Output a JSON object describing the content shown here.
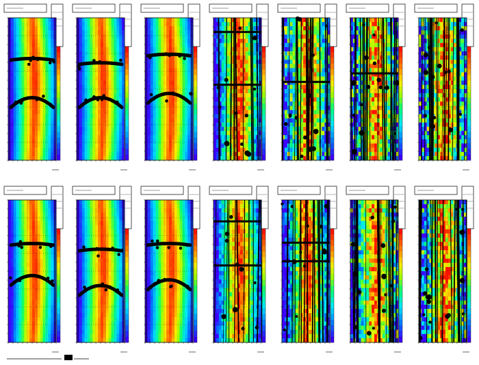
{
  "colors": {
    "background": "#ffffff",
    "palette_low": "#2b00ff",
    "palette_high": "#ff1a00",
    "overlay": "#000000"
  },
  "chart_data": {
    "type": "heatmap",
    "grid": {
      "rows": 2,
      "cols": 7
    },
    "title": "",
    "xlabel": "",
    "ylabel": "",
    "colorbar": "right",
    "panels": [
      {
        "row": 0,
        "col": 0,
        "overlay": "bands",
        "bands": [
          0.3,
          0.58
        ],
        "noise": 0.05
      },
      {
        "row": 0,
        "col": 1,
        "overlay": "bands",
        "bands": [
          0.33,
          0.58
        ],
        "noise": 0.06
      },
      {
        "row": 0,
        "col": 2,
        "overlay": "bands",
        "bands": [
          0.27,
          0.55
        ],
        "noise": 0.06
      },
      {
        "row": 0,
        "col": 3,
        "overlay": "verticals",
        "bands": [
          0.1,
          0.47
        ],
        "noise": 0.55
      },
      {
        "row": 0,
        "col": 4,
        "overlay": "verticals",
        "bands": [
          0.45
        ],
        "noise": 0.75
      },
      {
        "row": 0,
        "col": 5,
        "overlay": "verticals",
        "bands": [
          0.39
        ],
        "noise": 0.9
      },
      {
        "row": 0,
        "col": 6,
        "overlay": "verticals",
        "bands": [],
        "noise": 0.95
      },
      {
        "row": 1,
        "col": 0,
        "overlay": "bands",
        "bands": [
          0.32,
          0.55
        ],
        "noise": 0.05
      },
      {
        "row": 1,
        "col": 1,
        "overlay": "bands",
        "bands": [
          0.36,
          0.62
        ],
        "noise": 0.06
      },
      {
        "row": 1,
        "col": 2,
        "overlay": "bands",
        "bands": [
          0.32,
          0.58
        ],
        "noise": 0.05
      },
      {
        "row": 1,
        "col": 3,
        "overlay": "verticals",
        "bands": [
          0.15,
          0.46
        ],
        "noise": 0.4
      },
      {
        "row": 1,
        "col": 4,
        "overlay": "verticals",
        "bands": [
          0.3,
          0.43
        ],
        "noise": 0.6
      },
      {
        "row": 1,
        "col": 5,
        "overlay": "verticals",
        "bands": [],
        "noise": 0.8
      },
      {
        "row": 1,
        "col": 6,
        "overlay": "verticals",
        "bands": [],
        "noise": 0.95
      }
    ]
  }
}
